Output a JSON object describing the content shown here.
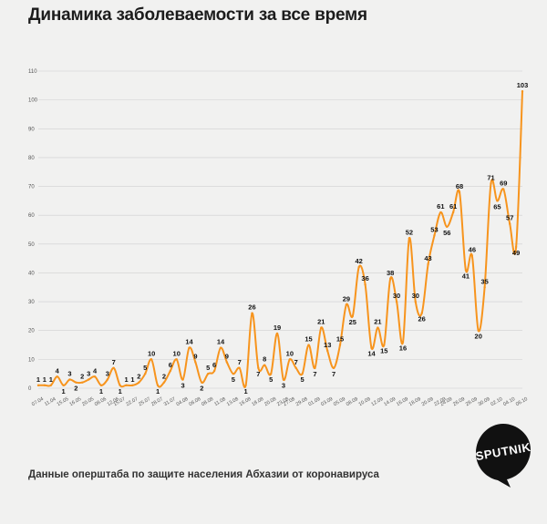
{
  "title": "Динамика заболеваемости за все время",
  "source": "Данные оперштаба по защите населения Абхазии от коронавируса",
  "logo_text": "SPUTNIK",
  "colors": {
    "line": "#f7941d",
    "background": "#f1f1f0",
    "grid": "#cfcfcf",
    "logo": "#111111"
  },
  "chart_data": {
    "type": "line",
    "title": "Динамика заболеваемости за все время",
    "xlabel": "",
    "ylabel": "",
    "ylim": [
      0,
      110
    ],
    "yticks": [
      0,
      10,
      20,
      30,
      40,
      50,
      60,
      70,
      80,
      90,
      100,
      110
    ],
    "grid": true,
    "x_tick_labels": [
      "07.04",
      "11.04",
      "15.05",
      "16.05",
      "20.05",
      "08.06",
      "12.06",
      "15.07",
      "22.07",
      "25.07",
      "28.07",
      "31.07",
      "04.08",
      "06.08",
      "08.08",
      "11.08",
      "13.08",
      "16.08",
      "18.08",
      "20.08",
      "23.08",
      "27.08",
      "29.08",
      "01.09",
      "03.09",
      "05.09",
      "08.09",
      "10.09",
      "12.09",
      "14.09",
      "16.09",
      "18.09",
      "20.09",
      "22.09",
      "24.09",
      "26.09",
      "28.09",
      "30.09",
      "02.10",
      "04.10",
      "06.10"
    ],
    "series": [
      {
        "values": [
          1,
          1,
          1,
          4,
          1,
          3,
          2,
          2,
          3,
          4,
          1,
          3,
          7,
          1,
          1,
          1,
          2,
          5,
          10,
          1,
          2,
          6,
          10,
          3,
          14,
          9,
          2,
          5,
          6,
          14,
          9,
          5,
          7,
          1,
          26,
          7,
          8,
          5,
          19,
          3,
          10,
          7,
          5,
          15,
          7,
          21,
          13,
          7,
          15,
          29,
          25,
          42,
          36,
          14,
          21,
          15,
          38,
          30,
          16,
          52,
          30,
          26,
          43,
          53,
          61,
          56,
          61,
          68,
          41,
          46,
          20,
          35,
          71,
          65,
          69,
          57,
          49,
          103
        ]
      }
    ]
  }
}
